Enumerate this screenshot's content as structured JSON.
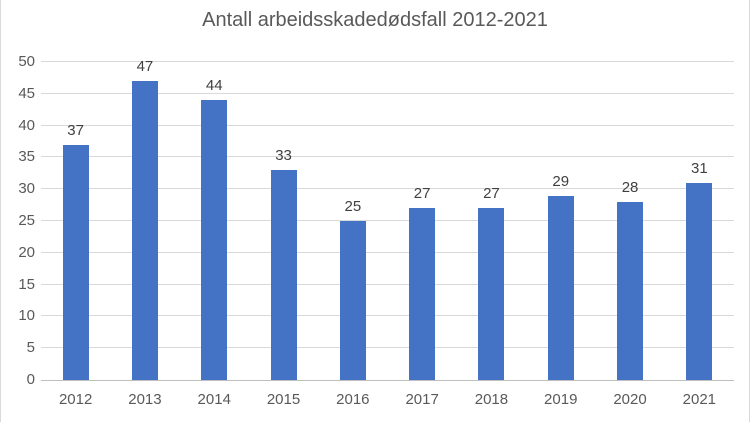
{
  "chart_data": {
    "type": "bar",
    "title": "Antall arbeidsskadedødsfall 2012-2021",
    "categories": [
      "2012",
      "2013",
      "2014",
      "2015",
      "2016",
      "2017",
      "2018",
      "2019",
      "2020",
      "2021"
    ],
    "values": [
      37,
      47,
      44,
      33,
      25,
      27,
      27,
      29,
      28,
      31
    ],
    "xlabel": "",
    "ylabel": "",
    "ylim": [
      0,
      50
    ],
    "ytick_step": 5,
    "yticks": [
      0,
      5,
      10,
      15,
      20,
      25,
      30,
      35,
      40,
      45,
      50
    ],
    "grid": true,
    "legend": "none",
    "data_labels": true,
    "colors": {
      "bar": "#4472C4",
      "gridline": "#D9D9D9",
      "axis_line": "#BFBFBF",
      "title_text": "#595959",
      "tick_text": "#595959",
      "data_label_text": "#404040",
      "background": "#FFFFFF",
      "border": "#D9D9D9"
    }
  }
}
